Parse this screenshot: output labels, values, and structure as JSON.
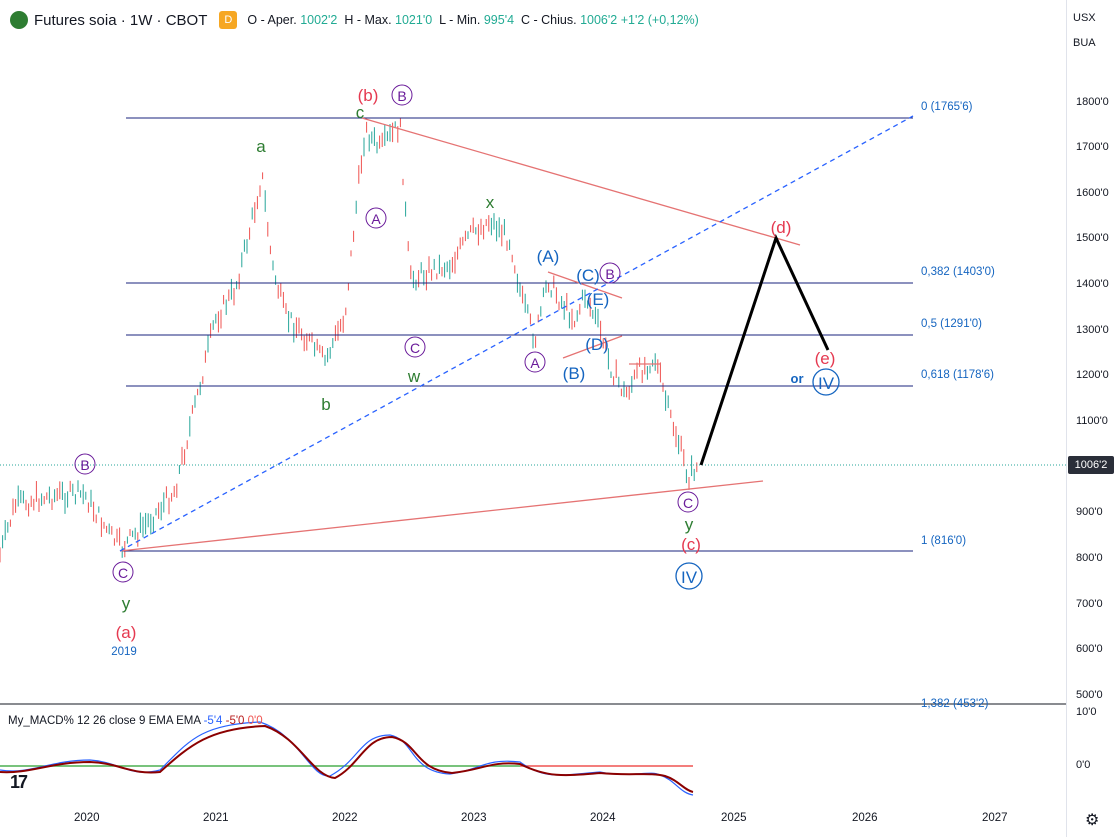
{
  "header": {
    "title": "Futures soia · 1W · CBOT",
    "badge": "D",
    "open_label": "O - Aper.",
    "open": "1002'2",
    "high_label": "H - Max.",
    "high": "1021'0",
    "low_label": "L - Min.",
    "low": "995'4",
    "close_label": "C - Chius.",
    "close": "1006'2",
    "change": "+1'2 (+0,12%)"
  },
  "right_panel": {
    "currency": "USX",
    "unit": "BUA"
  },
  "price_axis": [
    "1800'0",
    "1700'0",
    "1600'0",
    "1500'0",
    "1400'0",
    "1300'0",
    "1200'0",
    "1100'0",
    "900'0",
    "800'0",
    "700'0",
    "600'0",
    "500'0"
  ],
  "last_price": "1006'2",
  "macd_axis": [
    "10'0",
    "0'0"
  ],
  "time_axis": [
    "2020",
    "2021",
    "2022",
    "2023",
    "2024",
    "2025",
    "2026",
    "2027"
  ],
  "fib_levels": [
    {
      "label": "0 (1765'6)"
    },
    {
      "label": "0,382 (1403'0)"
    },
    {
      "label": "0,5 (1291'0)"
    },
    {
      "label": "0,618 (1178'6)"
    },
    {
      "label": "1 (816'0)"
    },
    {
      "label": "1,382 (453'2)"
    }
  ],
  "wave_labels": {
    "b_red": "(b)",
    "B_top": "B",
    "c_green": "c",
    "a_green": "a",
    "A_circ": "A",
    "x_green": "x",
    "A_paren": "(A)",
    "C_paren": "(C)",
    "B_circ2": "B",
    "E_paren": "(E)",
    "D_paren": "(D)",
    "B_paren": "(B)",
    "A_circ2": "A",
    "C_circ": "C",
    "w_green": "w",
    "b_green": "b",
    "B_left": "B",
    "C_left": "C",
    "y_left": "y",
    "a_red": "(a)",
    "year": "2019",
    "d_red": "(d)",
    "e_red": "(e)",
    "or_text": "or",
    "IV_right": "IV",
    "C_bottom": "C",
    "y_bottom": "y",
    "c_red": "(c)",
    "IV_bottom": "IV"
  },
  "macd": {
    "name": "My_MACD% 12 26 close 9 EMA EMA",
    "v1": "-5'4",
    "v2": "-5'0",
    "v3": "0'0"
  },
  "colors": {
    "bull": "#26a69a",
    "bear": "#ef5350",
    "fib": "#1a237e",
    "trend": "#e57373",
    "wave_blue": "#1565c0",
    "wave_green": "#2e7d32",
    "wave_red": "#e53950",
    "wave_purple": "#6a1b9a"
  }
}
